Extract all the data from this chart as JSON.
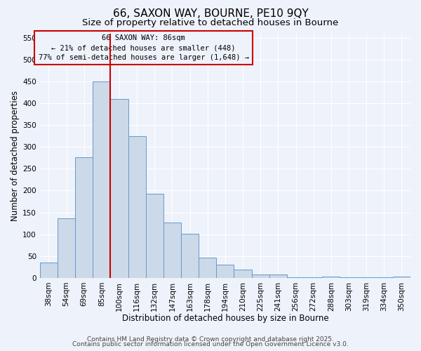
{
  "title": "66, SAXON WAY, BOURNE, PE10 9QY",
  "subtitle": "Size of property relative to detached houses in Bourne",
  "xlabel": "Distribution of detached houses by size in Bourne",
  "ylabel": "Number of detached properties",
  "bar_labels": [
    "38sqm",
    "54sqm",
    "69sqm",
    "85sqm",
    "100sqm",
    "116sqm",
    "132sqm",
    "147sqm",
    "163sqm",
    "178sqm",
    "194sqm",
    "210sqm",
    "225sqm",
    "241sqm",
    "256sqm",
    "272sqm",
    "288sqm",
    "303sqm",
    "319sqm",
    "334sqm",
    "350sqm"
  ],
  "bar_values": [
    35,
    137,
    277,
    450,
    410,
    325,
    192,
    126,
    101,
    46,
    31,
    19,
    7,
    8,
    2,
    2,
    3,
    1,
    1,
    1,
    3
  ],
  "bar_color": "#ccd9e8",
  "bar_edge_color": "#6699cc",
  "vline_x_idx": 3,
  "vline_color": "#cc0000",
  "ylim": [
    0,
    560
  ],
  "yticks": [
    0,
    50,
    100,
    150,
    200,
    250,
    300,
    350,
    400,
    450,
    500,
    550
  ],
  "annotation_title": "66 SAXON WAY: 86sqm",
  "annotation_line1": "← 21% of detached houses are smaller (448)",
  "annotation_line2": "77% of semi-detached houses are larger (1,648) →",
  "annotation_box_color": "#cc0000",
  "footer_line1": "Contains HM Land Registry data © Crown copyright and database right 2025.",
  "footer_line2": "Contains public sector information licensed under the Open Government Licence v3.0.",
  "bg_color": "#eef2fb",
  "grid_color": "#ffffff",
  "title_fontsize": 11,
  "subtitle_fontsize": 9.5,
  "axis_label_fontsize": 8.5,
  "tick_fontsize": 7.5,
  "annotation_fontsize": 7.5,
  "footer_fontsize": 6.5
}
